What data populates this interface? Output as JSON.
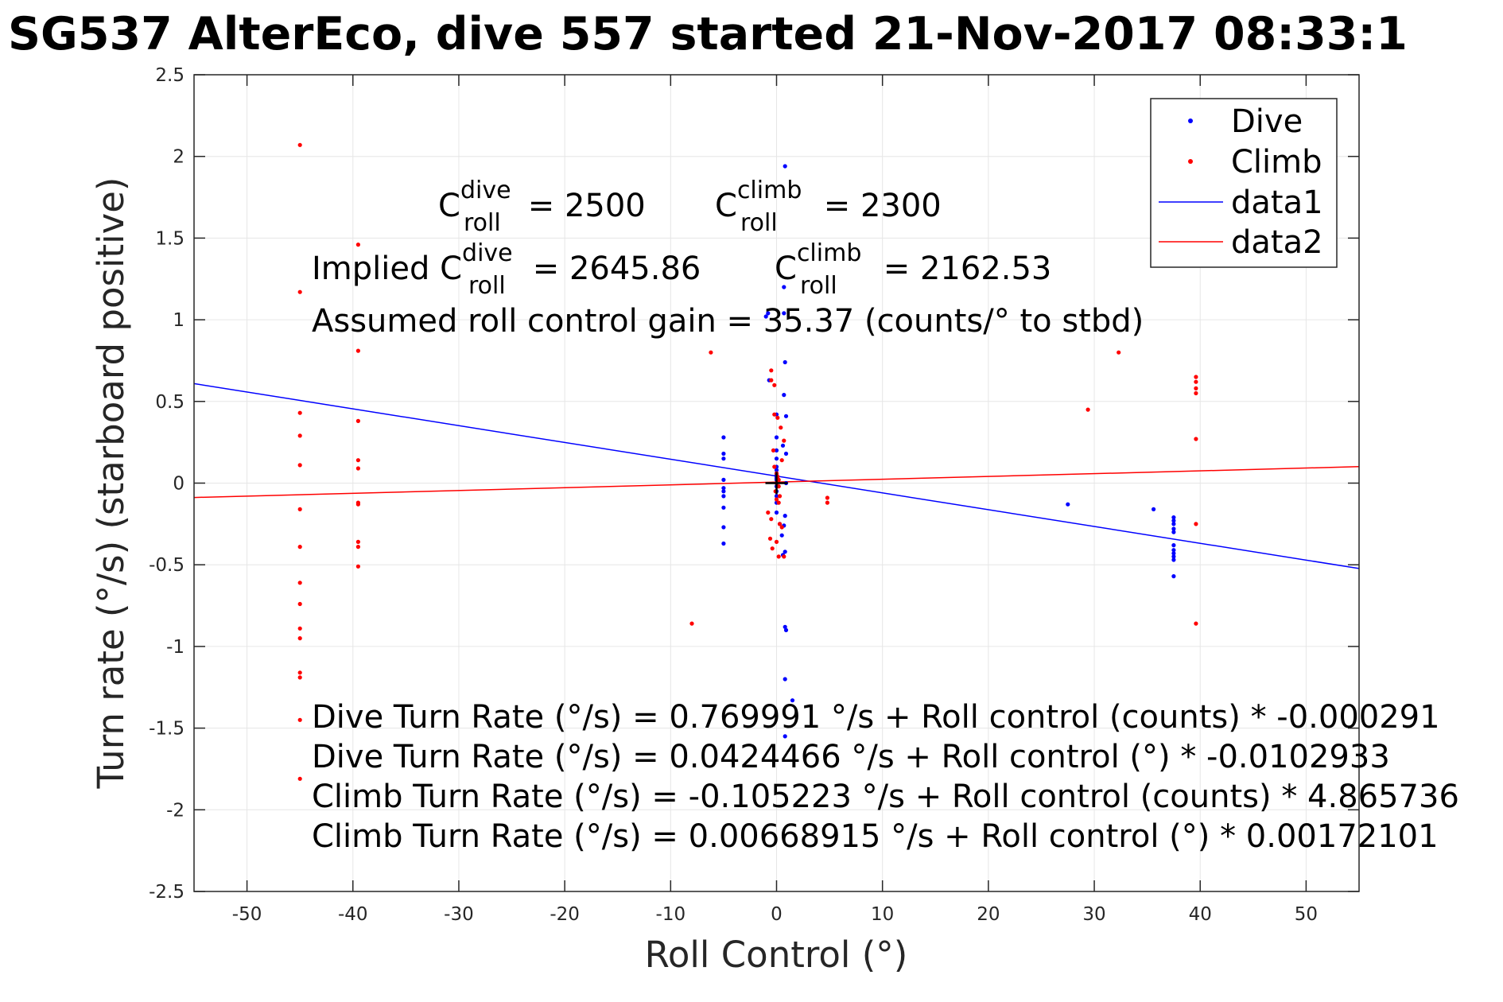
{
  "chart_data": {
    "type": "scatter",
    "title": "SG537 AlterEco, dive 557 started 21-Nov-2017 08:33:1",
    "xlabel": "Roll Control (°)",
    "ylabel": "Turn rate (°/s) (starboard positive)",
    "xlim": [
      -55,
      55
    ],
    "ylim": [
      -2.5,
      2.5
    ],
    "xticks": [
      -50,
      -40,
      -30,
      -20,
      -10,
      0,
      10,
      20,
      30,
      40,
      50
    ],
    "yticks": [
      -2.5,
      -2,
      -1.5,
      -1,
      -0.5,
      0,
      0.5,
      1,
      1.5,
      2,
      2.5
    ],
    "grid": true,
    "legend_placement": "top-right",
    "colors": {
      "dive": "#0000ff",
      "climb": "#ff0000"
    },
    "legend": [
      {
        "label": "Dive",
        "kind": "marker",
        "color": "#0000ff"
      },
      {
        "label": "Climb",
        "kind": "marker",
        "color": "#ff0000"
      },
      {
        "label": "data1",
        "kind": "line",
        "color": "#0000ff"
      },
      {
        "label": "data2",
        "kind": "line",
        "color": "#ff0000"
      }
    ],
    "series": [
      {
        "name": "Dive",
        "kind": "scatter",
        "color": "#0000ff",
        "points": [
          [
            -5,
            0.28
          ],
          [
            -5,
            0.18
          ],
          [
            -5,
            0.15
          ],
          [
            -5,
            0.02
          ],
          [
            -5,
            -0.03
          ],
          [
            -5,
            -0.05
          ],
          [
            -5,
            -0.08
          ],
          [
            -5,
            -0.15
          ],
          [
            -5,
            -0.27
          ],
          [
            -5,
            -0.37
          ],
          [
            -1,
            1.02
          ],
          [
            -0.8,
            1.04
          ],
          [
            -0.7,
            0.63
          ],
          [
            0,
            0.42
          ],
          [
            0,
            0.28
          ],
          [
            0,
            0.2
          ],
          [
            0,
            0.15
          ],
          [
            0,
            0.1
          ],
          [
            0,
            0.08
          ],
          [
            0,
            0.06
          ],
          [
            0,
            0.05
          ],
          [
            0,
            0.04
          ],
          [
            0,
            0.03
          ],
          [
            0,
            0.02
          ],
          [
            0,
            0.0
          ],
          [
            0,
            -0.02
          ],
          [
            0,
            -0.05
          ],
          [
            0,
            -0.08
          ],
          [
            0,
            -0.12
          ],
          [
            0,
            -0.18
          ],
          [
            0.3,
            -0.25
          ],
          [
            0.5,
            -0.32
          ],
          [
            0.6,
            -0.44
          ],
          [
            0.8,
            1.94
          ],
          [
            0.7,
            1.2
          ],
          [
            0.7,
            1.04
          ],
          [
            0.8,
            0.74
          ],
          [
            0.7,
            0.54
          ],
          [
            0.9,
            0.41
          ],
          [
            0.6,
            0.23
          ],
          [
            0.9,
            0.18
          ],
          [
            0.9,
            0.0
          ],
          [
            0.8,
            -0.2
          ],
          [
            0.7,
            -0.26
          ],
          [
            0.8,
            -0.42
          ],
          [
            0.8,
            -0.88
          ],
          [
            0.9,
            -0.9
          ],
          [
            0.8,
            -1.2
          ],
          [
            1.5,
            -1.33
          ],
          [
            0.8,
            -1.55
          ],
          [
            27.5,
            -0.13
          ],
          [
            35.6,
            -0.16
          ],
          [
            37.5,
            -0.21
          ],
          [
            37.5,
            -0.23
          ],
          [
            37.5,
            -0.25
          ],
          [
            37.5,
            -0.28
          ],
          [
            37.5,
            -0.3
          ],
          [
            37.5,
            -0.38
          ],
          [
            37.5,
            -0.41
          ],
          [
            37.5,
            -0.43
          ],
          [
            37.5,
            -0.45
          ],
          [
            37.5,
            -0.47
          ],
          [
            37.5,
            -0.57
          ]
        ]
      },
      {
        "name": "Climb",
        "kind": "scatter",
        "color": "#ff0000",
        "points": [
          [
            -45,
            2.07
          ],
          [
            -45,
            1.17
          ],
          [
            -45,
            0.43
          ],
          [
            -45,
            0.29
          ],
          [
            -45,
            0.11
          ],
          [
            -45,
            -0.16
          ],
          [
            -45,
            -0.39
          ],
          [
            -45,
            -0.61
          ],
          [
            -45,
            -0.74
          ],
          [
            -45,
            -0.89
          ],
          [
            -45,
            -0.95
          ],
          [
            -45,
            -1.16
          ],
          [
            -45,
            -1.19
          ],
          [
            -45,
            -1.45
          ],
          [
            -45,
            -1.81
          ],
          [
            -39.5,
            1.46
          ],
          [
            -39.5,
            0.81
          ],
          [
            -39.5,
            0.38
          ],
          [
            -39.5,
            0.14
          ],
          [
            -39.5,
            0.09
          ],
          [
            -39.5,
            -0.12
          ],
          [
            -39.5,
            -0.13
          ],
          [
            -39.5,
            -0.36
          ],
          [
            -39.5,
            -0.39
          ],
          [
            -39.5,
            -0.51
          ],
          [
            -6.2,
            0.8
          ],
          [
            -8,
            -0.86
          ],
          [
            -0.5,
            0.69
          ],
          [
            -0.5,
            0.63
          ],
          [
            -0.2,
            0.6
          ],
          [
            -0.2,
            0.42
          ],
          [
            0.1,
            0.4
          ],
          [
            0.4,
            0.34
          ],
          [
            0.7,
            0.26
          ],
          [
            -0.3,
            0.2
          ],
          [
            0.5,
            0.14
          ],
          [
            -0.2,
            0.1
          ],
          [
            0.0,
            0.06
          ],
          [
            0.1,
            0.04
          ],
          [
            0.2,
            0.02
          ],
          [
            0.0,
            0.0
          ],
          [
            0.2,
            -0.02
          ],
          [
            -0.1,
            -0.05
          ],
          [
            0.3,
            -0.08
          ],
          [
            0.0,
            -0.1
          ],
          [
            0.2,
            -0.12
          ],
          [
            -0.8,
            -0.18
          ],
          [
            -0.5,
            -0.22
          ],
          [
            0.3,
            -0.25
          ],
          [
            0.5,
            -0.27
          ],
          [
            -0.6,
            -0.34
          ],
          [
            0.0,
            -0.36
          ],
          [
            -0.4,
            -0.4
          ],
          [
            0.2,
            -0.45
          ],
          [
            0.7,
            -0.45
          ],
          [
            4.8,
            -0.09
          ],
          [
            4.8,
            -0.12
          ],
          [
            29.4,
            0.45
          ],
          [
            32.3,
            0.8
          ],
          [
            39.6,
            0.65
          ],
          [
            39.6,
            0.62
          ],
          [
            39.6,
            0.58
          ],
          [
            39.6,
            0.55
          ],
          [
            39.6,
            0.27
          ],
          [
            39.6,
            -0.25
          ],
          [
            39.6,
            -0.86
          ]
        ]
      },
      {
        "name": "data1",
        "kind": "line",
        "color": "#0000ff",
        "points": [
          [
            -55,
            0.609
          ],
          [
            55,
            -0.523
          ]
        ]
      },
      {
        "name": "data2",
        "kind": "line",
        "color": "#ff0000",
        "points": [
          [
            -55,
            -0.088
          ],
          [
            55,
            0.101
          ]
        ]
      }
    ],
    "origin_marker": [
      0,
      0
    ],
    "annotations": {
      "c_dive_base": "C",
      "c_dive_sup": "dive",
      "c_dive_sub": "roll",
      "c_dive_val": " = 2500",
      "c_climb_base": "C",
      "c_climb_sup": "climb",
      "c_climb_sub": "roll",
      "c_climb_val": " = 2300",
      "implied_prefix": "Implied C",
      "implied_dive_sup": "dive",
      "implied_dive_sub": "roll",
      "implied_dive_val": " = 2645.86",
      "implied_climb_base": "C",
      "implied_climb_sup": "climb",
      "implied_climb_sub": "roll",
      "implied_climb_val": " = 2162.53",
      "gain": "Assumed roll control gain = 35.37 (counts/° to stbd)",
      "eq1": "Dive Turn Rate (°/s) = 0.769991 °/s + Roll control (counts) * -0.000291",
      "eq2": "Dive Turn Rate (°/s) = 0.0424466 °/s + Roll control (°) * -0.0102933",
      "eq3": "Climb Turn Rate (°/s) = -0.105223 °/s + Roll control (counts) * 4.865736",
      "eq4": "Climb Turn Rate (°/s) = 0.00668915 °/s + Roll control (°) * 0.00172101"
    }
  }
}
